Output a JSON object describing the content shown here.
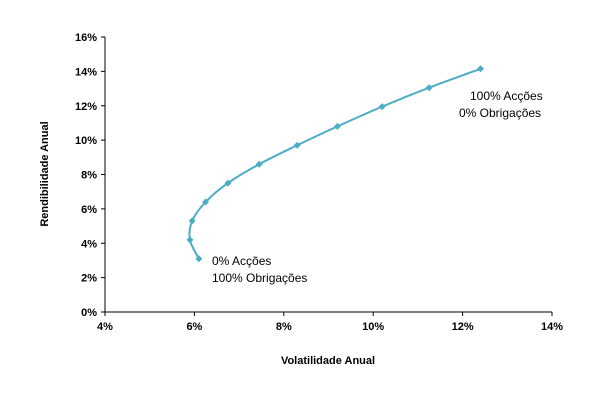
{
  "chart_data": {
    "type": "line",
    "xlabel": "Volatilidade Anual",
    "ylabel": "Rendibilidade Anual",
    "xlim": [
      4,
      14
    ],
    "ylim": [
      0,
      16
    ],
    "x_ticks": [
      "4%",
      "6%",
      "8%",
      "10%",
      "12%",
      "14%"
    ],
    "y_ticks": [
      "0%",
      "2%",
      "4%",
      "6%",
      "8%",
      "10%",
      "12%",
      "14%",
      "16%"
    ],
    "grid": false,
    "legend": "none",
    "series": [
      {
        "color": "#4BACC6",
        "points": [
          {
            "x": 6.1,
            "y": 3.1
          },
          {
            "x": 5.9,
            "y": 4.2
          },
          {
            "x": 5.95,
            "y": 5.3
          },
          {
            "x": 6.25,
            "y": 6.4
          },
          {
            "x": 6.75,
            "y": 7.5
          },
          {
            "x": 7.45,
            "y": 8.6
          },
          {
            "x": 8.3,
            "y": 9.7
          },
          {
            "x": 9.2,
            "y": 10.8
          },
          {
            "x": 10.2,
            "y": 11.95
          },
          {
            "x": 11.25,
            "y": 13.05
          },
          {
            "x": 12.4,
            "y": 14.15
          }
        ]
      }
    ],
    "annotations": {
      "top": {
        "line1": "100% Acções",
        "line2": "0% Obrigações"
      },
      "bottom": {
        "line1": "0% Acções",
        "line2": "100% Obrigações"
      }
    }
  }
}
